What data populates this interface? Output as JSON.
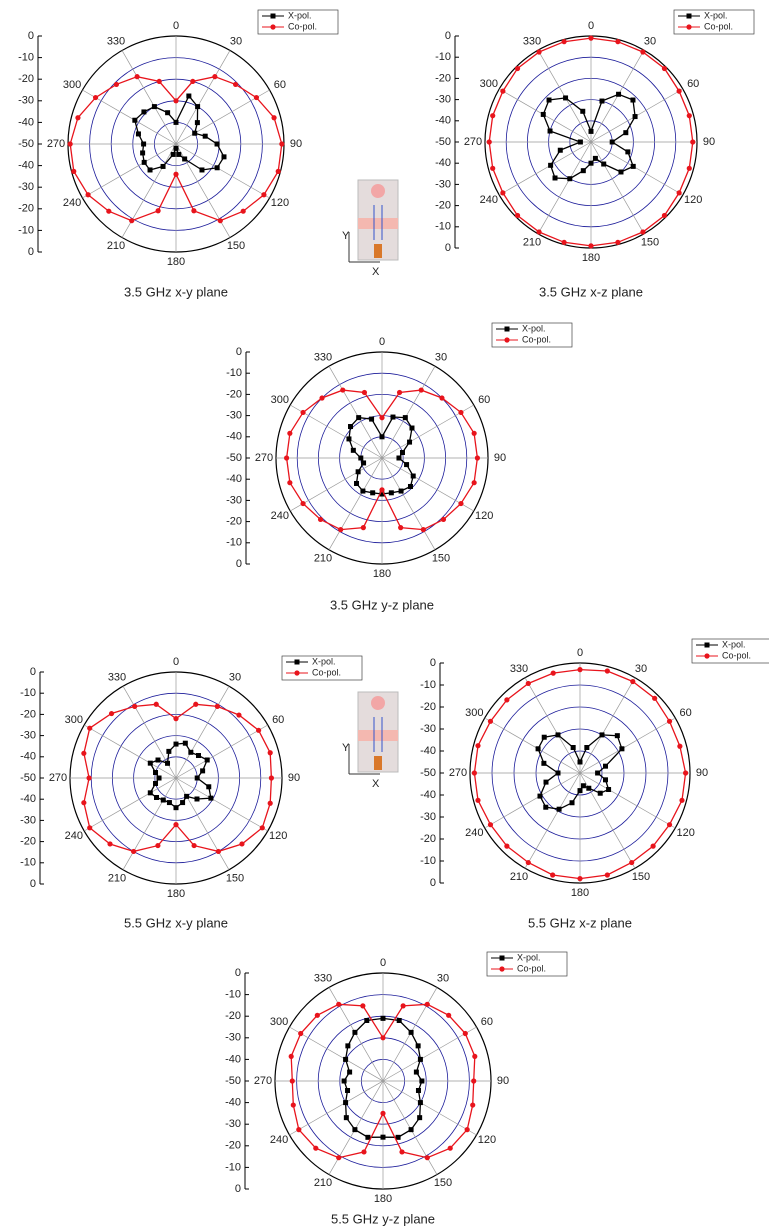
{
  "chart_data": [
    {
      "type": "polar",
      "title": "3.5 GHz x-y plane",
      "theta": [
        0,
        15,
        30,
        45,
        60,
        75,
        90,
        105,
        120,
        135,
        150,
        165,
        180,
        195,
        210,
        225,
        240,
        255,
        270,
        285,
        300,
        315,
        330,
        345
      ],
      "series": [
        {
          "name": "X-pol.",
          "color": "#000000",
          "marker": "square",
          "values": [
            -40,
            -27,
            -30,
            -36,
            -40,
            -36,
            -31,
            -27,
            -28,
            -33,
            -42,
            -45,
            -48,
            -45,
            -38,
            -33,
            -33,
            -34,
            -35,
            -32,
            -28,
            -29,
            -30,
            -35
          ]
        },
        {
          "name": "Co-pol.",
          "color": "#e8141c",
          "marker": "circle",
          "values": [
            -30,
            -20,
            -14,
            -11,
            -7,
            -3,
            -1,
            -1,
            -3,
            -6,
            -9,
            -18,
            -36,
            -18,
            -9,
            -6,
            -3,
            -1,
            -1,
            -3,
            -7,
            -11,
            -14,
            -20
          ]
        }
      ],
      "rlim": [
        -50,
        0
      ],
      "rticks": [
        -50,
        -40,
        -30,
        -20,
        -10,
        0
      ],
      "thetaticks": [
        0,
        30,
        60,
        90,
        120,
        150,
        180,
        210,
        240,
        270,
        300,
        330
      ],
      "legend": "upper right",
      "grid": true
    },
    {
      "type": "polar",
      "title": "3.5 GHz x-z plane",
      "theta": [
        0,
        15,
        30,
        45,
        60,
        75,
        90,
        105,
        120,
        135,
        150,
        165,
        180,
        195,
        210,
        225,
        240,
        255,
        270,
        285,
        300,
        315,
        330,
        345
      ],
      "series": [
        {
          "name": "X-pol.",
          "color": "#000000",
          "marker": "square",
          "values": [
            -45,
            -30,
            -24,
            -22,
            -26,
            -33,
            -40,
            -32,
            -27,
            -30,
            -38,
            -42,
            -40,
            -36,
            -30,
            -26,
            -28,
            -35,
            -45,
            -30,
            -24,
            -22,
            -26,
            -35
          ]
        },
        {
          "name": "Co-pol.",
          "color": "#e8141c",
          "marker": "circle",
          "values": [
            -1,
            -1,
            -1,
            -1,
            -2,
            -2,
            -2,
            -2,
            -2,
            -1,
            -1,
            -1,
            -1,
            -1,
            -1,
            -1,
            -2,
            -2,
            -2,
            -2,
            -2,
            -1,
            -1,
            -1
          ]
        }
      ],
      "rlim": [
        -50,
        0
      ],
      "rticks": [
        -50,
        -40,
        -30,
        -20,
        -10,
        0
      ],
      "thetaticks": [
        0,
        30,
        60,
        90,
        120,
        150,
        180,
        210,
        240,
        270,
        300,
        330
      ],
      "legend": "upper right",
      "grid": true
    },
    {
      "type": "polar",
      "title": "3.5 GHz y-z plane",
      "theta": [
        0,
        15,
        30,
        45,
        60,
        75,
        90,
        105,
        120,
        135,
        150,
        165,
        180,
        195,
        210,
        225,
        240,
        255,
        270,
        285,
        300,
        315,
        330,
        345
      ],
      "series": [
        {
          "name": "X-pol.",
          "color": "#000000",
          "marker": "square",
          "values": [
            -40,
            -30,
            -28,
            -30,
            -35,
            -40,
            -42,
            -38,
            -33,
            -31,
            -32,
            -33,
            -33,
            -33,
            -32,
            -33,
            -37,
            -41,
            -40,
            -36,
            -32,
            -29,
            -28,
            -31
          ]
        },
        {
          "name": "Co-pol.",
          "color": "#e8141c",
          "marker": "circle",
          "values": [
            -31,
            -18,
            -13,
            -10,
            -7,
            -5,
            -5,
            -5,
            -7,
            -9,
            -11,
            -16,
            -35,
            -16,
            -11,
            -9,
            -7,
            -5,
            -5,
            -5,
            -7,
            -10,
            -13,
            -18
          ]
        }
      ],
      "rlim": [
        -50,
        0
      ],
      "rticks": [
        -50,
        -40,
        -30,
        -20,
        -10,
        0
      ],
      "thetaticks": [
        0,
        30,
        60,
        90,
        120,
        150,
        180,
        210,
        240,
        270,
        300,
        330
      ],
      "legend": "upper right",
      "grid": true
    },
    {
      "type": "polar",
      "title": "5.5 GHz x-y plane",
      "theta": [
        0,
        15,
        30,
        45,
        60,
        75,
        90,
        105,
        120,
        135,
        150,
        165,
        180,
        195,
        210,
        225,
        240,
        255,
        270,
        285,
        300,
        315,
        330,
        345
      ],
      "series": [
        {
          "name": "X-pol.",
          "color": "#000000",
          "marker": "square",
          "values": [
            -34,
            -33,
            -36,
            -35,
            -33,
            -37,
            -40,
            -34,
            -31,
            -36,
            -40,
            -38,
            -36,
            -38,
            -38,
            -37,
            -36,
            -40,
            -42,
            -40,
            -36,
            -38,
            -42,
            -37
          ]
        },
        {
          "name": "Co-pol.",
          "color": "#e8141c",
          "marker": "circle",
          "values": [
            -22,
            -14,
            -11,
            -8,
            -5,
            -4,
            -5,
            -4,
            -3,
            -6,
            -10,
            -17,
            -28,
            -17,
            -10,
            -6,
            -3,
            -5,
            -9,
            -5,
            -3,
            -7,
            -11,
            -14
          ]
        }
      ],
      "rlim": [
        -50,
        0
      ],
      "rticks": [
        -50,
        -40,
        -30,
        -20,
        -10,
        0
      ],
      "thetaticks": [
        0,
        30,
        60,
        90,
        120,
        150,
        180,
        210,
        240,
        270,
        300,
        330
      ],
      "legend": "upper right",
      "grid": true
    },
    {
      "type": "polar",
      "title": "5.5 GHz x-z plane",
      "theta": [
        0,
        15,
        30,
        45,
        60,
        75,
        90,
        105,
        120,
        135,
        150,
        165,
        180,
        195,
        210,
        225,
        240,
        255,
        270,
        285,
        300,
        315,
        330,
        345
      ],
      "series": [
        {
          "name": "X-pol.",
          "color": "#000000",
          "marker": "square",
          "values": [
            -45,
            -38,
            -30,
            -26,
            -28,
            -38,
            -42,
            -38,
            -35,
            -37,
            -42,
            -44,
            -42,
            -36,
            -31,
            -28,
            -29,
            -34,
            -40,
            -33,
            -28,
            -27,
            -30,
            -38
          ]
        },
        {
          "name": "Co-pol.",
          "color": "#e8141c",
          "marker": "circle",
          "values": [
            -3,
            -2,
            -2,
            -2,
            -3,
            -3,
            -2,
            -2,
            -3,
            -3,
            -3,
            -2,
            -2,
            -2,
            -3,
            -3,
            -3,
            -2,
            -2,
            -2,
            -3,
            -3,
            -3,
            -3
          ]
        }
      ],
      "rlim": [
        -50,
        0
      ],
      "rticks": [
        -50,
        -40,
        -30,
        -20,
        -10,
        0
      ],
      "thetaticks": [
        0,
        30,
        60,
        90,
        120,
        150,
        180,
        210,
        240,
        270,
        300,
        330
      ],
      "legend": "upper right",
      "grid": true
    },
    {
      "type": "polar",
      "title": "5.5 GHz y-z plane",
      "theta": [
        0,
        15,
        30,
        45,
        60,
        75,
        90,
        105,
        120,
        135,
        150,
        165,
        180,
        195,
        210,
        225,
        240,
        255,
        270,
        285,
        300,
        315,
        330,
        345
      ],
      "series": [
        {
          "name": "X-pol.",
          "color": "#000000",
          "marker": "square",
          "values": [
            -21,
            -21,
            -24,
            -27,
            -30,
            -34,
            -32,
            -33,
            -30,
            -26,
            -24,
            -23,
            -24,
            -23,
            -24,
            -26,
            -30,
            -33,
            -32,
            -34,
            -30,
            -27,
            -24,
            -21
          ]
        },
        {
          "name": "Co-pol.",
          "color": "#e8141c",
          "marker": "circle",
          "values": [
            -30,
            -14,
            -9,
            -7,
            -6,
            -6,
            -8,
            -7,
            -5,
            -6,
            -9,
            -16,
            -35,
            -16,
            -9,
            -6,
            -5,
            -7,
            -8,
            -6,
            -6,
            -7,
            -9,
            -14
          ]
        }
      ],
      "rlim": [
        -50,
        0
      ],
      "rticks": [
        -50,
        -40,
        -30,
        -20,
        -10,
        0
      ],
      "thetaticks": [
        0,
        30,
        60,
        90,
        120,
        150,
        180,
        210,
        240,
        270,
        300,
        330
      ],
      "legend": "upper right",
      "grid": true
    }
  ],
  "insets": [
    {
      "y_label": "Y",
      "x_label": "X"
    },
    {
      "y_label": "Y",
      "x_label": "X"
    }
  ]
}
